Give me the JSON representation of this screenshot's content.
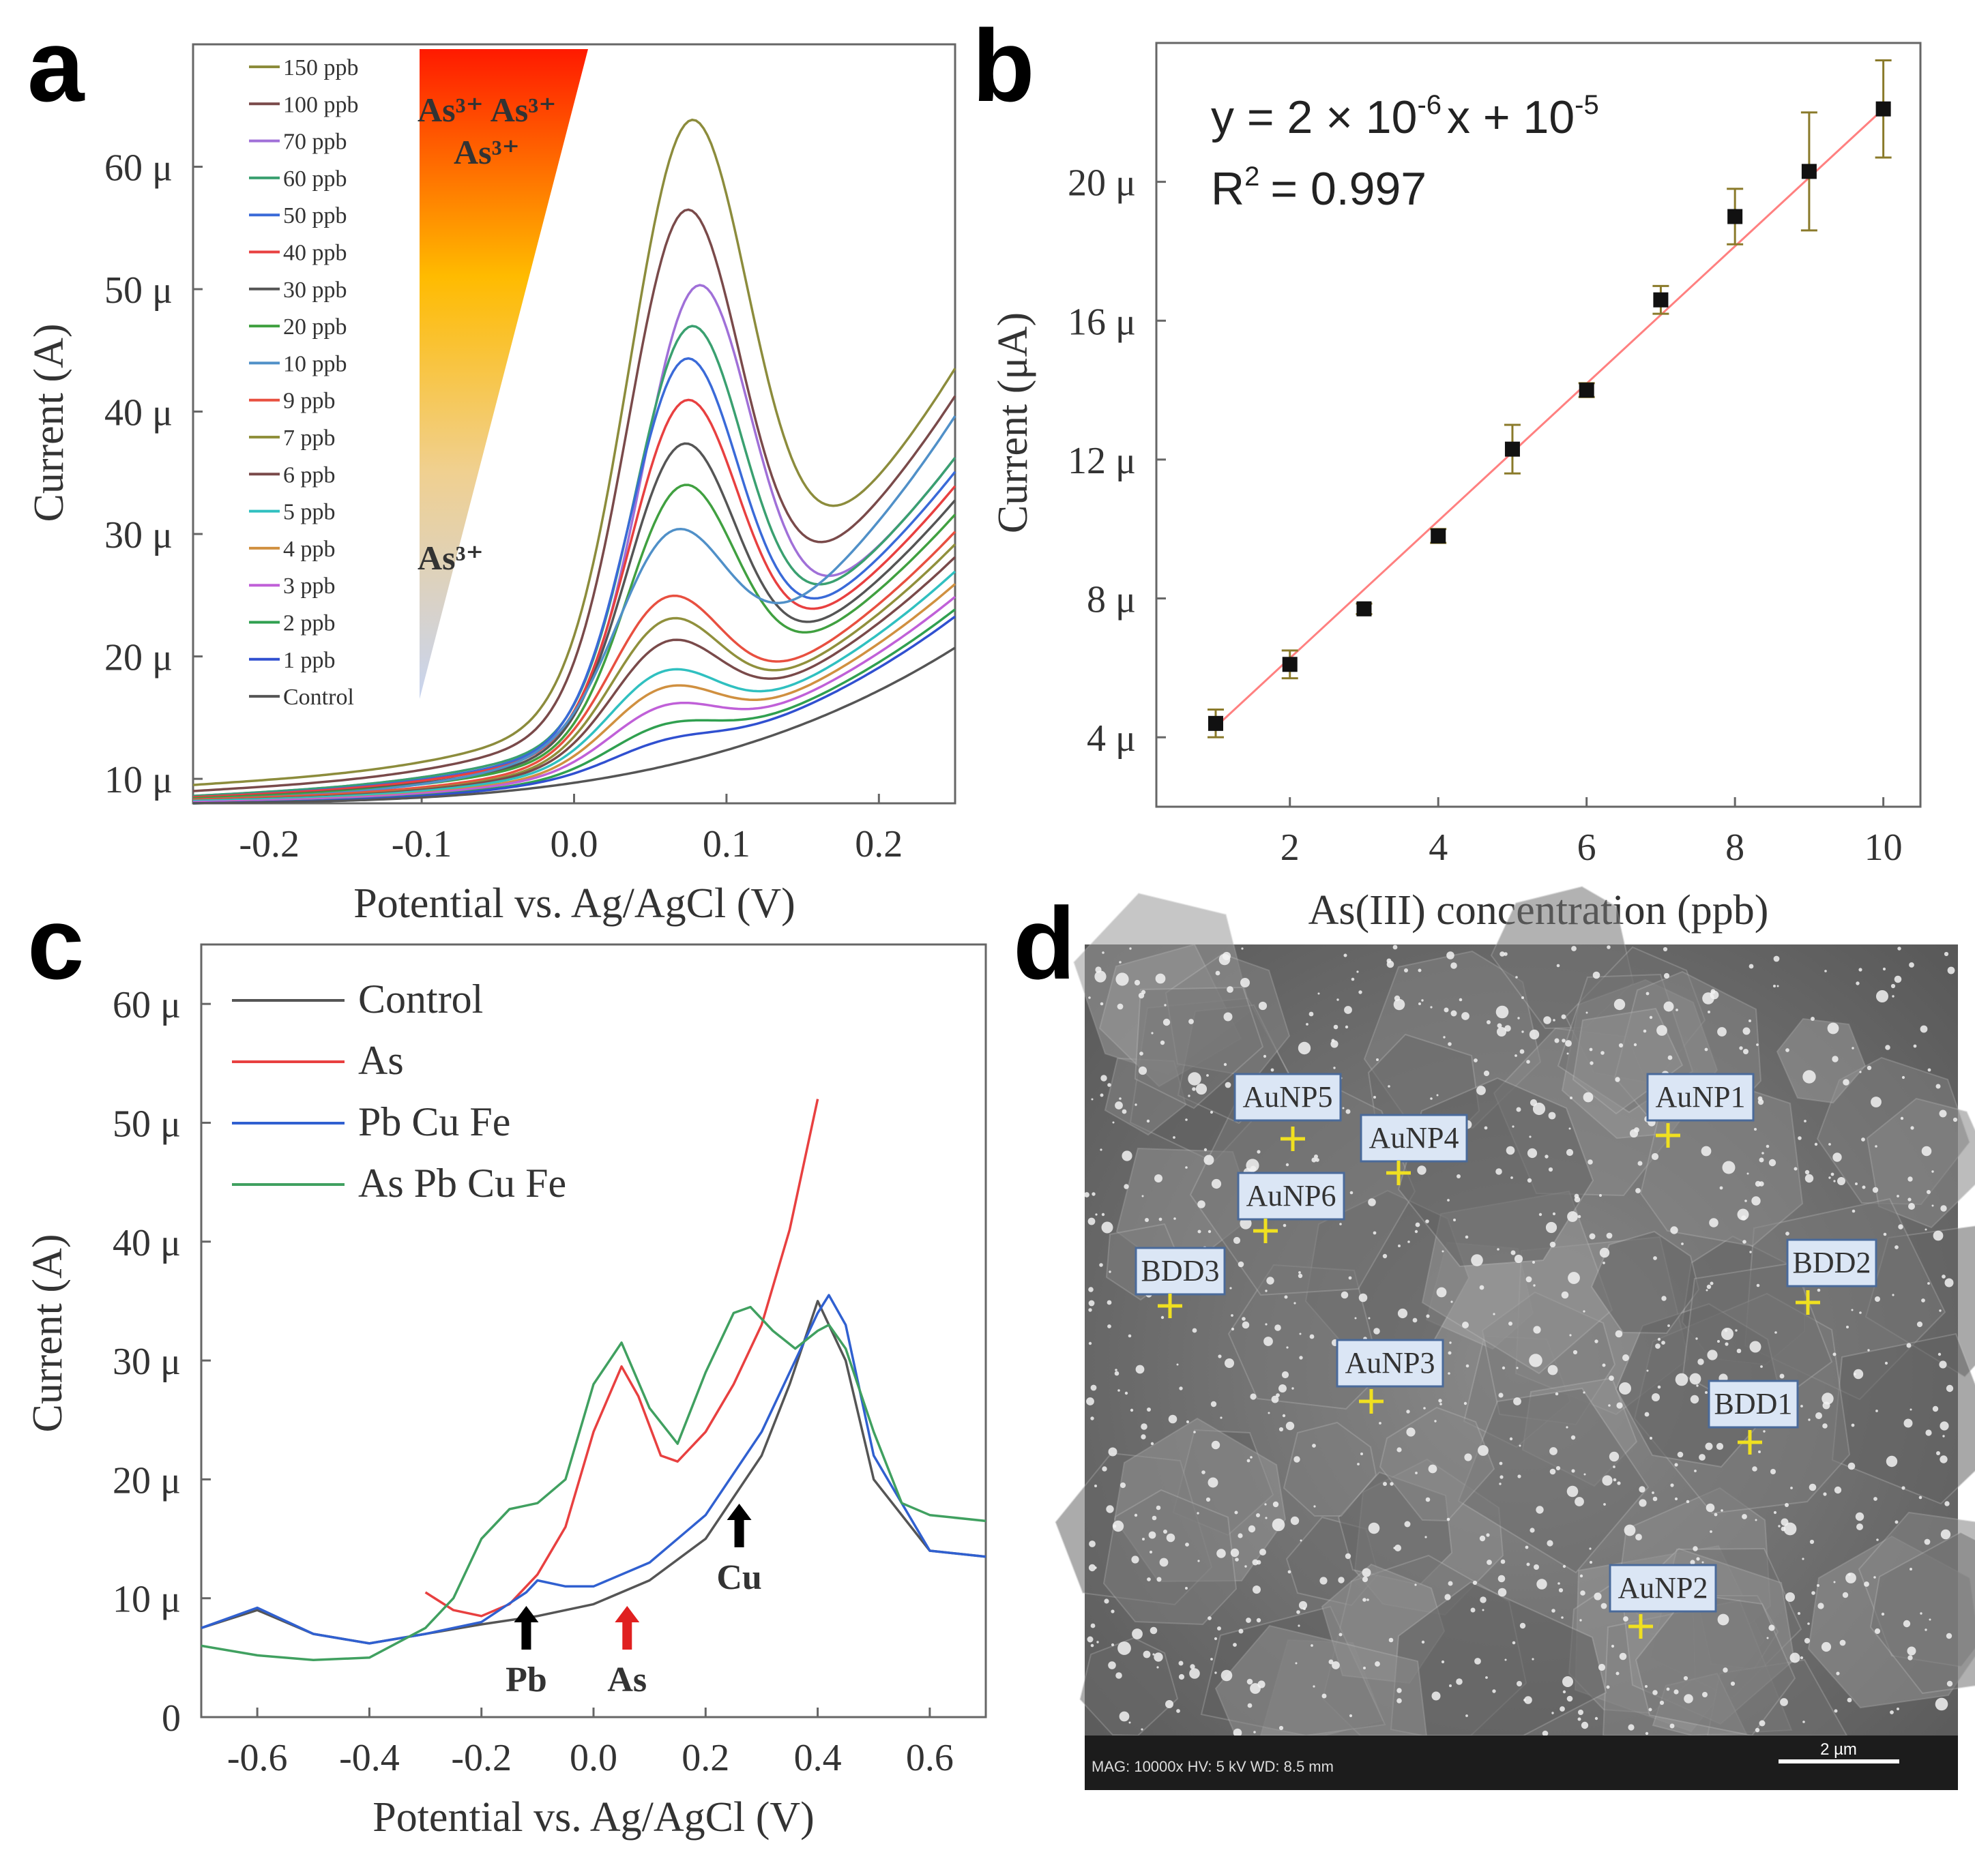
{
  "chart_data": [
    {
      "panel": "a",
      "type": "line",
      "xlabel": "Potential vs. Ag/AgCl (V)",
      "ylabel": "Current (A)",
      "xlim": [
        -0.25,
        0.25
      ],
      "ylim": [
        8,
        70
      ],
      "x_ticks": [
        -0.2,
        -0.1,
        0.0,
        0.1,
        0.2
      ],
      "x_tick_labels": [
        "-0.2",
        "-0.1",
        "0.0",
        "0.1",
        "0.2"
      ],
      "y_ticks": [
        10,
        20,
        30,
        40,
        50,
        60
      ],
      "y_tick_labels": [
        "10 μ",
        "20 μ",
        "30 μ",
        "40 μ",
        "50 μ",
        "60 μ"
      ],
      "legend_position": "top-left",
      "annotations": [
        "As³⁺ As³⁺",
        "As³⁺",
        "As³⁺"
      ],
      "series": [
        {
          "name": "150 ppb",
          "color": "#8c8c3c",
          "y_start": 9.5,
          "baseline_end": 26,
          "peak_height": 44,
          "peak_x": 0.075,
          "width": 0.055,
          "end": 42
        },
        {
          "name": "100 ppb",
          "color": "#7a4a4a",
          "y_start": 9.0,
          "baseline_end": 24,
          "peak_height": 38,
          "peak_x": 0.072,
          "width": 0.052,
          "end": 40
        },
        {
          "name": "70 ppb",
          "color": "#a070d8",
          "y_start": 8.6,
          "baseline_end": 22,
          "peak_height": 33,
          "peak_x": 0.08,
          "width": 0.05,
          "end": 35
        },
        {
          "name": "60 ppb",
          "color": "#3aa070",
          "y_start": 8.6,
          "baseline_end": 22,
          "peak_height": 30,
          "peak_x": 0.075,
          "width": 0.05,
          "end": 35
        },
        {
          "name": "50 ppb",
          "color": "#3a6ad8",
          "y_start": 8.5,
          "baseline_end": 21,
          "peak_height": 28,
          "peak_x": 0.072,
          "width": 0.05,
          "end": 34
        },
        {
          "name": "40 ppb",
          "color": "#e84040",
          "y_start": 8.5,
          "baseline_end": 20,
          "peak_height": 25,
          "peak_x": 0.072,
          "width": 0.05,
          "end": 33
        },
        {
          "name": "30 ppb",
          "color": "#555555",
          "y_start": 8.4,
          "baseline_end": 19,
          "peak_height": 22,
          "peak_x": 0.07,
          "width": 0.05,
          "end": 32
        },
        {
          "name": "20 ppb",
          "color": "#40a040",
          "y_start": 8.4,
          "baseline_end": 18,
          "peak_height": 19,
          "peak_x": 0.07,
          "width": 0.05,
          "end": 31
        },
        {
          "name": "10 ppb",
          "color": "#5090c8",
          "y_start": 8.3,
          "baseline_end": 17,
          "peak_height": 14,
          "peak_x": 0.063,
          "width": 0.05,
          "end": 40
        },
        {
          "name": "9 ppb",
          "color": "#e85040",
          "y_start": 8.3,
          "baseline_end": 16,
          "peak_height": 11,
          "peak_x": 0.06,
          "width": 0.05,
          "end": 30
        },
        {
          "name": "7 ppb",
          "color": "#90903c",
          "y_start": 8.2,
          "baseline_end": 15.5,
          "peak_height": 9.5,
          "peak_x": 0.06,
          "width": 0.05,
          "end": 29
        },
        {
          "name": "6 ppb",
          "color": "#7a4a4a",
          "y_start": 8.2,
          "baseline_end": 15,
          "peak_height": 8,
          "peak_x": 0.06,
          "width": 0.05,
          "end": 28
        },
        {
          "name": "5 ppb",
          "color": "#30c0c0",
          "y_start": 8.2,
          "baseline_end": 14,
          "peak_height": 6,
          "peak_x": 0.058,
          "width": 0.05,
          "end": 27
        },
        {
          "name": "4 ppb",
          "color": "#d09040",
          "y_start": 8.1,
          "baseline_end": 13.5,
          "peak_height": 5,
          "peak_x": 0.058,
          "width": 0.05,
          "end": 26
        },
        {
          "name": "3 ppb",
          "color": "#c060d8",
          "y_start": 8.1,
          "baseline_end": 13,
          "peak_height": 3.8,
          "peak_x": 0.058,
          "width": 0.05,
          "end": 25
        },
        {
          "name": "2 ppb",
          "color": "#30a050",
          "y_start": 8.0,
          "baseline_end": 12.5,
          "peak_height": 2.6,
          "peak_x": 0.058,
          "width": 0.05,
          "end": 24
        },
        {
          "name": "1 ppb",
          "color": "#3050d0",
          "y_start": 8.0,
          "baseline_end": 12,
          "peak_height": 1.5,
          "peak_x": 0.058,
          "width": 0.05,
          "end": 23.5
        },
        {
          "name": "Control",
          "color": "#555555",
          "y_start": 8.0,
          "baseline_end": 11,
          "peak_height": 0,
          "peak_x": 0.06,
          "width": 0.05,
          "end": 21
        }
      ]
    },
    {
      "panel": "b",
      "type": "scatter",
      "xlabel": "As(III) concentration (ppb)",
      "ylabel": "Current (μA)",
      "xlim": [
        0.2,
        10.5
      ],
      "ylim": [
        2,
        24
      ],
      "x_ticks": [
        2,
        4,
        6,
        8,
        10
      ],
      "x_tick_labels": [
        "2",
        "4",
        "6",
        "8",
        "10"
      ],
      "y_ticks": [
        4,
        8,
        12,
        16,
        20
      ],
      "y_tick_labels": [
        "4 μ",
        "8 μ",
        "12 μ",
        "16 μ",
        "20 μ"
      ],
      "x": [
        1,
        2,
        3,
        4,
        5,
        6,
        7,
        8,
        9,
        10
      ],
      "y": [
        4.4,
        6.1,
        7.7,
        9.8,
        12.3,
        14.0,
        16.6,
        19.0,
        20.3,
        22.1
      ],
      "error": [
        0.4,
        0.4,
        0.15,
        0.2,
        0.7,
        0.2,
        0.4,
        0.8,
        1.7,
        1.4
      ],
      "fit": {
        "x": [
          1,
          10
        ],
        "y": [
          4.3,
          22.1
        ]
      },
      "equation": "y = 2 × 10",
      "equation_exp1": "-6",
      "equation_mid": "x + 10",
      "equation_exp2": "-5",
      "r2_label": "R",
      "r2_exp": "2",
      "r2_value": "= 0.997"
    },
    {
      "panel": "c",
      "type": "line",
      "xlabel": "Potential vs. Ag/AgCl (V)",
      "ylabel": "Current (A)",
      "xlim": [
        -0.7,
        0.7
      ],
      "ylim": [
        0,
        65
      ],
      "x_ticks": [
        -0.6,
        -0.4,
        -0.2,
        0.0,
        0.2,
        0.4,
        0.6
      ],
      "x_tick_labels": [
        "-0.6",
        "-0.4",
        "-0.2",
        "0.0",
        "0.2",
        "0.4",
        "0.6"
      ],
      "y_ticks": [
        0,
        10,
        20,
        30,
        40,
        50,
        60
      ],
      "y_tick_labels": [
        "0",
        "10 μ",
        "20 μ",
        "30 μ",
        "40 μ",
        "50 μ",
        "60 μ"
      ],
      "legend_position": "top-left",
      "annotations": [
        {
          "text": "Pb",
          "x": -0.12,
          "arrow_color": "#000000"
        },
        {
          "text": "As",
          "x": 0.06,
          "arrow_color": "#e02020"
        },
        {
          "text": "Cu",
          "x": 0.26,
          "arrow_color": "#000000"
        }
      ],
      "series": [
        {
          "name": "Control",
          "color": "#555555",
          "x": [
            -0.7,
            -0.6,
            -0.5,
            -0.4,
            -0.3,
            -0.2,
            -0.1,
            0.0,
            0.1,
            0.2,
            0.3,
            0.35,
            0.4,
            0.45,
            0.5,
            0.6,
            0.7
          ],
          "y": [
            7.5,
            9,
            7,
            6.2,
            7,
            7.8,
            8.5,
            9.5,
            11.5,
            15,
            22,
            28,
            35,
            30,
            20,
            14,
            13.5
          ]
        },
        {
          "name": "As",
          "color": "#e84040",
          "x": [
            -0.3,
            -0.25,
            -0.2,
            -0.15,
            -0.1,
            -0.05,
            0.0,
            0.05,
            0.08,
            0.12,
            0.15,
            0.2,
            0.25,
            0.3,
            0.35,
            0.4
          ],
          "y": [
            10.5,
            9,
            8.5,
            9.5,
            12,
            16,
            24,
            29.5,
            27,
            22,
            21.5,
            24,
            28,
            33,
            41,
            52
          ]
        },
        {
          "name": "Pb Cu Fe",
          "color": "#3060d0",
          "x": [
            -0.7,
            -0.6,
            -0.5,
            -0.4,
            -0.3,
            -0.2,
            -0.12,
            -0.1,
            -0.05,
            0.0,
            0.1,
            0.2,
            0.3,
            0.35,
            0.4,
            0.42,
            0.45,
            0.5,
            0.6,
            0.7
          ],
          "y": [
            7.5,
            9.2,
            7,
            6.2,
            7,
            8,
            10.5,
            11.5,
            11,
            11,
            13,
            17,
            24,
            29,
            34,
            35.5,
            33,
            22,
            14,
            13.5
          ]
        },
        {
          "name": "As Pb Cu Fe",
          "color": "#40a060",
          "x": [
            -0.7,
            -0.6,
            -0.5,
            -0.4,
            -0.3,
            -0.25,
            -0.2,
            -0.15,
            -0.1,
            -0.05,
            0.0,
            0.05,
            0.1,
            0.15,
            0.2,
            0.25,
            0.28,
            0.32,
            0.36,
            0.4,
            0.42,
            0.45,
            0.5,
            0.55,
            0.6,
            0.7
          ],
          "y": [
            6,
            5.2,
            4.8,
            5,
            7.5,
            10,
            15,
            17.5,
            18,
            20,
            28,
            31.5,
            26,
            23,
            29,
            34,
            34.5,
            32.5,
            31,
            32.5,
            33,
            31,
            24,
            18,
            17,
            16.5
          ]
        }
      ]
    }
  ],
  "panel_labels": {
    "a": "a",
    "b": "b",
    "c": "c",
    "d": "d"
  },
  "sem": {
    "labels": [
      "AuNP5",
      "AuNP4",
      "AuNP1",
      "AuNP6",
      "BDD3",
      "BDD2",
      "AuNP3",
      "BDD1",
      "AuNP2"
    ],
    "info_bar": "MAG: 10000x   HV: 5 kV   WD: 8.5 mm",
    "scale_bar": "2 µm"
  }
}
